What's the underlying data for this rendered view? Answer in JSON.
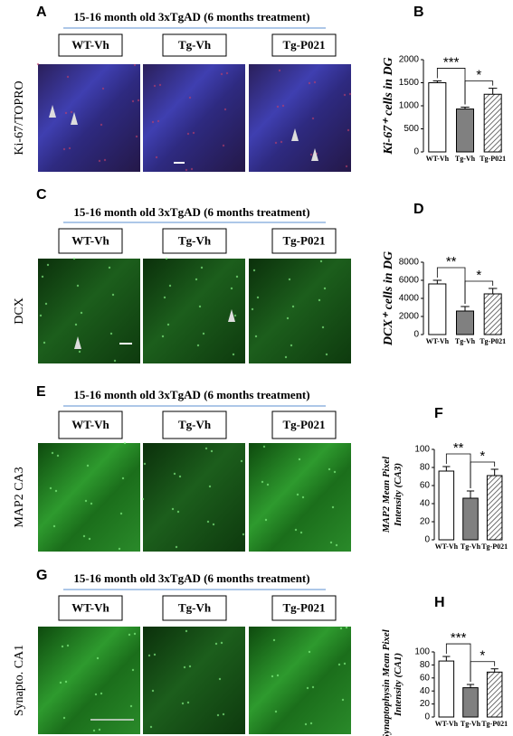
{
  "panels": [
    {
      "letter": "A",
      "title": "15-16 month old 3xTgAD (6 months treatment)",
      "groups": [
        "WT-Vh",
        "Tg-Vh",
        "Tg-P021"
      ],
      "stain": "Ki-67/TOPRO"
    },
    {
      "letter": "C",
      "title": "15-16 month old 3xTgAD (6 months treatment)",
      "groups": [
        "WT-Vh",
        "Tg-Vh",
        "Tg-P021"
      ],
      "stain": "DCX"
    },
    {
      "letter": "E",
      "title": "15-16 month old 3xTgAD (6 months treatment)",
      "groups": [
        "WT-Vh",
        "Tg-Vh",
        "Tg-P021"
      ],
      "stain": "MAP2  CA3"
    },
    {
      "letter": "G",
      "title": "15-16 month old 3xTgAD (6 months treatment)",
      "groups": [
        "WT-Vh",
        "Tg-Vh",
        "Tg-P021"
      ],
      "stain": "Synapto. CA1"
    }
  ],
  "chart_data": [
    {
      "type": "bar",
      "panel_label": "B",
      "ylabel": [
        "Ki-67⁺ cells in DG"
      ],
      "categories": [
        "WT-Vh",
        "Tg-Vh",
        "Tg-P021"
      ],
      "values": [
        1500,
        930,
        1250
      ],
      "errors": [
        40,
        40,
        130
      ],
      "colors": [
        "#ffffff",
        "#808080",
        "#ffffff"
      ],
      "patterns": [
        "solid",
        "solid",
        "hatch"
      ],
      "ylim": [
        0,
        2000
      ],
      "yticks": [
        0,
        500,
        1000,
        1500,
        2000
      ],
      "significance": [
        "***",
        "*"
      ]
    },
    {
      "type": "bar",
      "panel_label": "D",
      "ylabel": [
        "DCX⁺ cells in DG"
      ],
      "categories": [
        "WT-Vh",
        "Tg-Vh",
        "Tg-P021"
      ],
      "values": [
        5600,
        2600,
        4500
      ],
      "errors": [
        400,
        500,
        600
      ],
      "colors": [
        "#ffffff",
        "#808080",
        "#ffffff"
      ],
      "patterns": [
        "solid",
        "solid",
        "hatch"
      ],
      "ylim": [
        0,
        8000
      ],
      "yticks": [
        0,
        2000,
        4000,
        6000,
        8000
      ],
      "significance": [
        "**",
        "*"
      ]
    },
    {
      "type": "bar",
      "panel_label": "F",
      "ylabel": [
        "MAP2 Mean Pixel",
        "Intensity (CA3)"
      ],
      "categories": [
        "WT-Vh",
        "Tg-Vh",
        "Tg-P021"
      ],
      "values": [
        76,
        46,
        71
      ],
      "errors": [
        5,
        8,
        7
      ],
      "colors": [
        "#ffffff",
        "#808080",
        "#ffffff"
      ],
      "patterns": [
        "solid",
        "solid",
        "hatch"
      ],
      "ylim": [
        0,
        100
      ],
      "yticks": [
        0,
        20,
        40,
        60,
        80,
        100
      ],
      "significance": [
        "**",
        "*"
      ]
    },
    {
      "type": "bar",
      "panel_label": "H",
      "ylabel": [
        "Synaptophysin Mean Pixel",
        "Intensity (CA1)"
      ],
      "categories": [
        "WT-Vh",
        "Tg-Vh",
        "Tg-P021"
      ],
      "values": [
        86,
        45,
        69
      ],
      "errors": [
        7,
        5,
        5
      ],
      "colors": [
        "#ffffff",
        "#808080",
        "#ffffff"
      ],
      "patterns": [
        "solid",
        "solid",
        "hatch"
      ],
      "ylim": [
        0,
        100
      ],
      "yticks": [
        0,
        20,
        40,
        60,
        80,
        100
      ],
      "significance": [
        "***",
        "*"
      ]
    }
  ]
}
